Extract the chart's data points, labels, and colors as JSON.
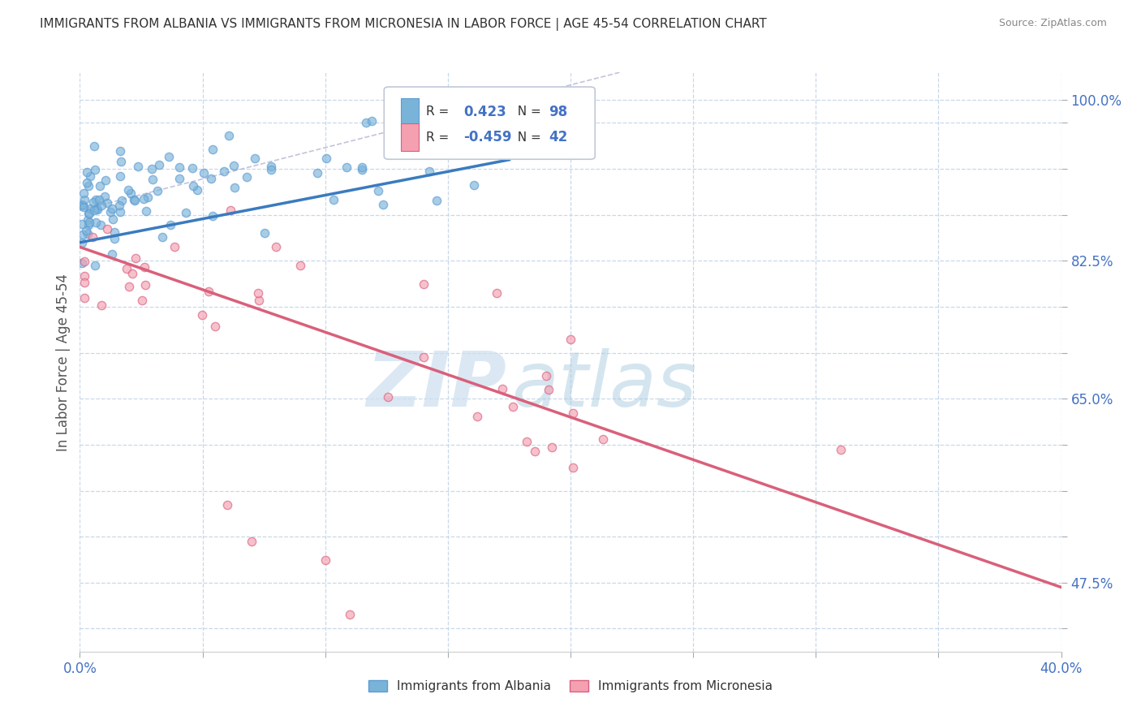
{
  "title": "IMMIGRANTS FROM ALBANIA VS IMMIGRANTS FROM MICRONESIA IN LABOR FORCE | AGE 45-54 CORRELATION CHART",
  "source": "Source: ZipAtlas.com",
  "ylabel": "In Labor Force | Age 45-54",
  "xlim": [
    0.0,
    0.4
  ],
  "ylim": [
    0.4,
    1.03
  ],
  "albania_color": "#7ab3d8",
  "albania_edge_color": "#5b9bd5",
  "micronesia_color": "#f4a0b0",
  "micronesia_edge_color": "#d96080",
  "albania_line_color": "#3a7bbf",
  "micronesia_line_color": "#d9607a",
  "R_albania": 0.423,
  "N_albania": 98,
  "R_micronesia": -0.459,
  "N_micronesia": 42,
  "watermark_zip": "ZIP",
  "watermark_atlas": "atlas",
  "background_color": "#ffffff",
  "grid_color": "#c8d8ea",
  "axis_label_color": "#4472c4",
  "legend_box_color": "#e8eef6",
  "albania_line_x": [
    0.0,
    0.175
  ],
  "albania_line_y": [
    0.845,
    0.935
  ],
  "micronesia_line_x": [
    0.0,
    0.4
  ],
  "micronesia_line_y": [
    0.84,
    0.47
  ],
  "diag_line_x": [
    0.0,
    0.22
  ],
  "diag_line_y": [
    0.88,
    1.03
  ]
}
